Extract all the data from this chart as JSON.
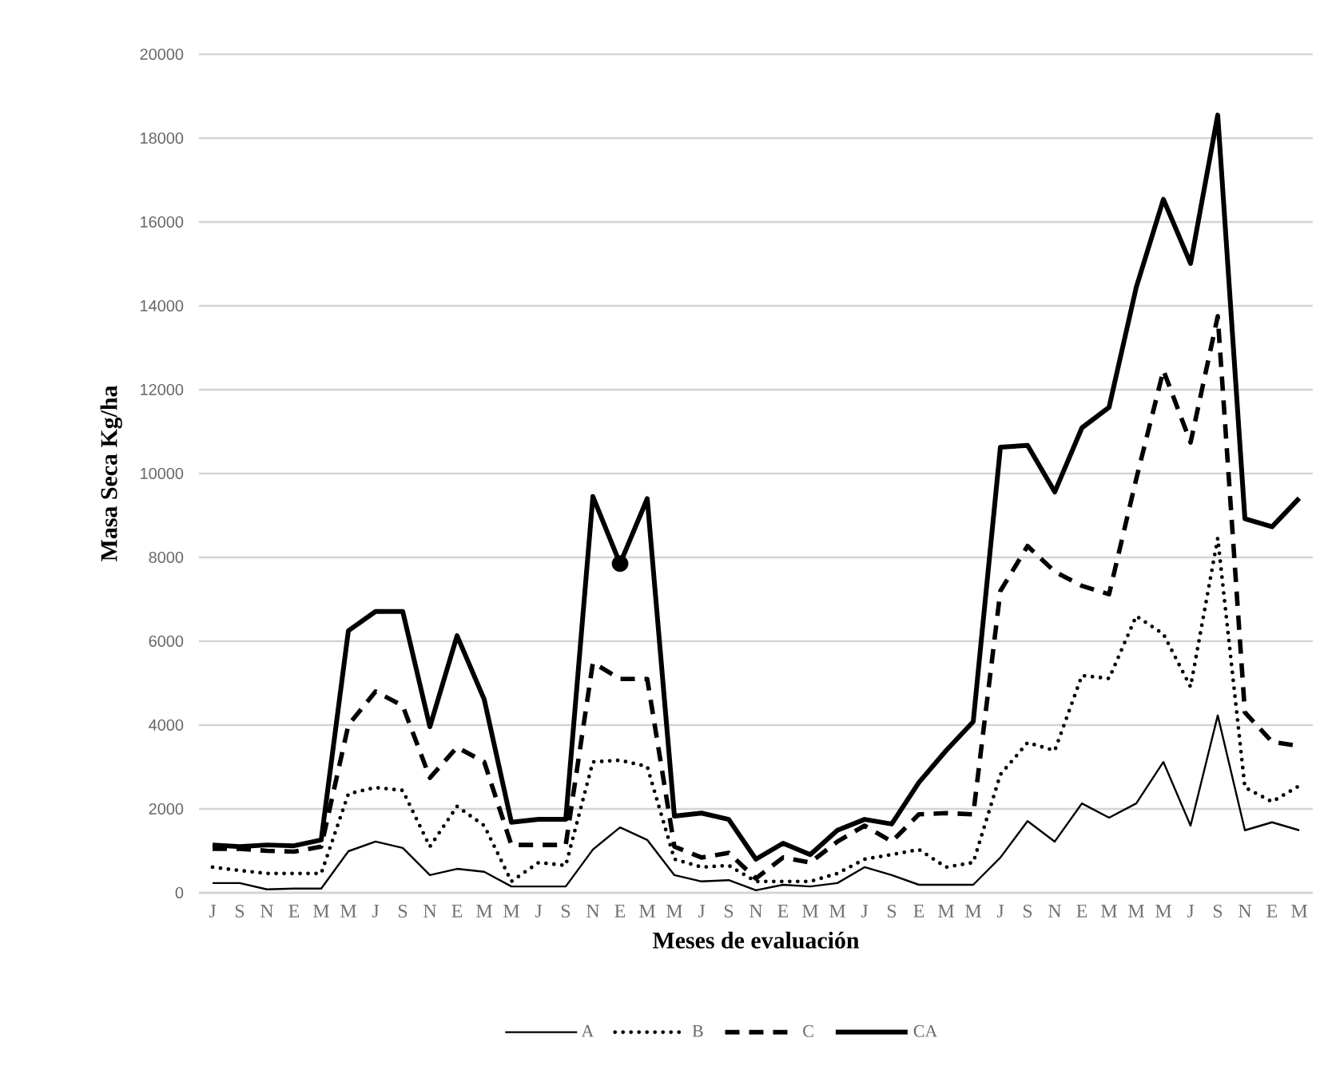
{
  "chart_data": {
    "type": "line",
    "xlabel": "Meses de evaluación",
    "ylabel": "Masa Seca Kg/ha",
    "categories": [
      "J",
      "S",
      "N",
      "E",
      "M",
      "M",
      "J",
      "S",
      "N",
      "E",
      "M",
      "M",
      "J",
      "S",
      "N",
      "E",
      "M",
      "M",
      "J",
      "S",
      "N",
      "E",
      "M",
      "M",
      "J",
      "S",
      "E",
      "M",
      "M",
      "J",
      "S",
      "N",
      "E",
      "M",
      "M",
      "M",
      "J",
      "S",
      "N",
      "E",
      "M"
    ],
    "series": [
      {
        "name": "A",
        "color": "#000000",
        "line_style": "solid",
        "values": [
          230,
          230,
          80,
          100,
          100,
          990,
          1220,
          1070,
          420,
          570,
          500,
          150,
          150,
          150,
          1030,
          1560,
          1260,
          420,
          270,
          300,
          60,
          190,
          150,
          230,
          610,
          420,
          190,
          190,
          190,
          840,
          1710,
          1220,
          2130,
          1790,
          2130,
          3120,
          1600,
          4230,
          1490,
          1680,
          1490
        ]
      },
      {
        "name": "B",
        "color": "#000000",
        "line_style": "dotted",
        "values": [
          610,
          530,
          460,
          460,
          460,
          2360,
          2510,
          2440,
          1100,
          2060,
          1600,
          270,
          720,
          650,
          3120,
          3160,
          3010,
          800,
          610,
          650,
          270,
          270,
          270,
          460,
          800,
          910,
          1030,
          610,
          720,
          2820,
          3580,
          3390,
          5180,
          5110,
          6600,
          6170,
          4910,
          8460,
          2510,
          2170,
          2550
        ]
      },
      {
        "name": "C",
        "color": "#000000",
        "line_style": "dashed",
        "values": [
          1050,
          1050,
          1000,
          980,
          1100,
          4000,
          4800,
          4460,
          2740,
          3470,
          3120,
          1140,
          1140,
          1140,
          5490,
          5100,
          5100,
          1100,
          840,
          950,
          340,
          840,
          720,
          1220,
          1600,
          1220,
          1870,
          1900,
          1870,
          7200,
          8270,
          7660,
          7320,
          7120,
          9870,
          12460,
          10740,
          13750,
          4300,
          3600,
          3500
        ]
      },
      {
        "name": "CA",
        "color": "#000000",
        "line_style": "solid",
        "values": [
          1140,
          1100,
          1140,
          1120,
          1260,
          6250,
          6710,
          6710,
          3960,
          6130,
          4610,
          1680,
          1750,
          1750,
          9450,
          7850,
          9400,
          1830,
          1900,
          1750,
          800,
          1180,
          910,
          1490,
          1750,
          1640,
          2630,
          3390,
          4080,
          10630,
          10670,
          9560,
          11090,
          11580,
          14440,
          16540,
          15010,
          18550,
          8920,
          8730,
          9410
        ]
      },
      {
        "type": "scatter",
        "color": "#000000",
        "marker": "circle",
        "values": [
          null,
          null,
          null,
          null,
          null,
          null,
          null,
          null,
          null,
          null,
          null,
          null,
          null,
          null,
          null,
          7850,
          null,
          null,
          null,
          null,
          null,
          null,
          null,
          null,
          null,
          null,
          null,
          null,
          null,
          null,
          null,
          null,
          null,
          null,
          null,
          null,
          null,
          null,
          null,
          null,
          null
        ]
      }
    ],
    "ylim": [
      0,
      20000
    ],
    "yticks": [
      0,
      2000,
      4000,
      6000,
      8000,
      10000,
      12000,
      14000,
      16000,
      18000,
      20000
    ],
    "grid": "y",
    "legend": "bottom"
  }
}
